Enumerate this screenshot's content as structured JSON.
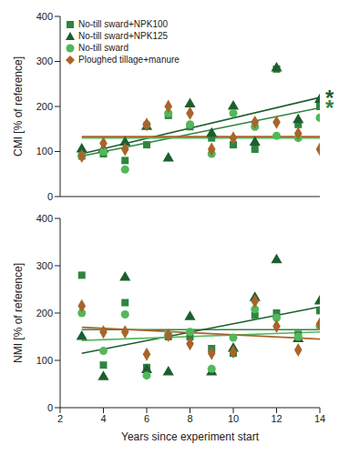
{
  "chart_data": [
    {
      "type": "scatter",
      "ylabel": "CMI [% of reference]",
      "legend": "upper left",
      "tick_labels": "y",
      "x": [
        3,
        4,
        5,
        6,
        7,
        8,
        9,
        10,
        11,
        12,
        13,
        14
      ],
      "xlim": [
        2,
        14
      ],
      "xticks": [
        2,
        4,
        6,
        8,
        10,
        12,
        14
      ],
      "ylim": [
        0,
        400
      ],
      "yticks": [
        0,
        100,
        200,
        300,
        400
      ],
      "trend_x": [
        3,
        14
      ],
      "series": [
        {
          "name": "No-till sward+NPK100",
          "color": "#2e8540",
          "marker": "square",
          "values": [
            90,
            95,
            80,
            115,
            180,
            155,
            130,
            115,
            105,
            283,
            160,
            200
          ],
          "trend": [
            90,
            197
          ]
        },
        {
          "name": "No-till sward+NPK125",
          "color": "#1d5e2e",
          "marker": "triangle",
          "values": [
            105,
            105,
            120,
            155,
            85,
            205,
            140,
            200,
            120,
            285,
            170,
            215
          ],
          "trend": [
            95,
            220
          ]
        },
        {
          "name": "No-till sward",
          "color": "#52b85a",
          "marker": "circle",
          "values": [
            90,
            100,
            60,
            160,
            185,
            160,
            95,
            185,
            155,
            135,
            130,
            175
          ],
          "trend": [
            130,
            130
          ]
        },
        {
          "name": "Ploughed tillage+manure",
          "color": "#a8642a",
          "marker": "diamond",
          "values": [
            90,
            118,
            105,
            160,
            200,
            185,
            105,
            130,
            165,
            165,
            140,
            105
          ],
          "trend": [
            133,
            133
          ]
        }
      ],
      "annotations": [
        {
          "text": "*",
          "x": 14,
          "y": 220,
          "color": "#1d5e2e"
        },
        {
          "text": "*",
          "x": 14,
          "y": 197,
          "color": "#2e8540"
        }
      ]
    },
    {
      "type": "scatter",
      "ylabel": "NMI [% of reference]",
      "xlabel": "Years since experiment start",
      "x": [
        3,
        4,
        5,
        6,
        7,
        8,
        9,
        10,
        11,
        12,
        13,
        14
      ],
      "xlim": [
        2,
        14
      ],
      "xticks": [
        2,
        4,
        6,
        8,
        10,
        12,
        14
      ],
      "ylim": [
        0,
        400
      ],
      "yticks": [
        0,
        100,
        200,
        300,
        400
      ],
      "trend_x": [
        3,
        14
      ],
      "series": [
        {
          "name": "No-till sward+NPK100",
          "color": "#2e8540",
          "marker": "square",
          "values": [
            280,
            90,
            222,
            85,
            150,
            150,
            125,
            115,
            195,
            200,
            155,
            205
          ],
          "trend": [
            165,
            165
          ]
        },
        {
          "name": "No-till sward+NPK125",
          "color": "#1d5e2e",
          "marker": "triangle",
          "values": [
            150,
            65,
            275,
            80,
            75,
            192,
            75,
            125,
            232,
            312,
            145,
            225
          ],
          "trend": [
            115,
            213
          ]
        },
        {
          "name": "No-till sward",
          "color": "#52b85a",
          "marker": "circle",
          "values": [
            200,
            120,
            197,
            68,
            155,
            160,
            82,
            148,
            208,
            190,
            150,
            172
          ],
          "trend": [
            142,
            160
          ]
        },
        {
          "name": "Ploughed tillage+manure",
          "color": "#a8642a",
          "marker": "diamond",
          "values": [
            215,
            160,
            160,
            113,
            153,
            135,
            115,
            118,
            225,
            172,
            122,
            177
          ],
          "trend": [
            170,
            145
          ]
        }
      ]
    }
  ]
}
